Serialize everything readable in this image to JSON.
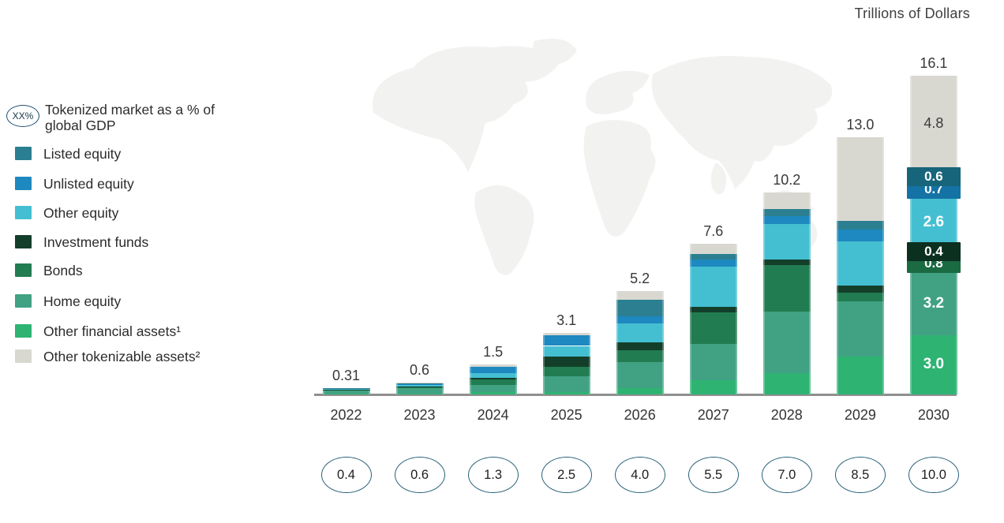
{
  "title": "Trillions of Dollars",
  "legend": {
    "gdp_note": {
      "badge": "XX%",
      "label": "Tokenized market as a % of global GDP"
    },
    "items": [
      {
        "label": "Listed equity",
        "color": "#2b7f90"
      },
      {
        "label": "Unlisted equity",
        "color": "#1e88c0"
      },
      {
        "label": "Other equity",
        "color": "#44bfd2"
      },
      {
        "label": "Investment funds",
        "color": "#133f2a"
      },
      {
        "label": "Bonds",
        "color": "#217c51"
      },
      {
        "label": "Home equity",
        "color": "#41a183"
      },
      {
        "label": "Other financial assets¹",
        "color": "#2eb373"
      },
      {
        "label": "Other tokenizable assets²",
        "color": "#d8d8d1"
      }
    ]
  },
  "chart_data": {
    "type": "bar",
    "stacked": true,
    "unit": "trillions of US dollars",
    "title": "Trillions of Dollars",
    "categories": [
      "2022",
      "2023",
      "2024",
      "2025",
      "2026",
      "2027",
      "2028",
      "2029",
      "2030"
    ],
    "totals": [
      0.31,
      0.6,
      1.5,
      3.1,
      5.2,
      7.6,
      10.2,
      13.0,
      16.1
    ],
    "total_labels": [
      "0.31",
      "0.6",
      "1.5",
      "3.1",
      "5.2",
      "7.6",
      "10.2",
      "13.0",
      "16.1"
    ],
    "gdp_percent_labels": [
      "0.4",
      "0.6",
      "1.3",
      "2.5",
      "4.0",
      "5.5",
      "7.0",
      "8.5",
      "10.0"
    ],
    "gdp_note": "Tokenized market as a % of global GDP",
    "legend_position": "left",
    "grid": false,
    "series_order": "bottom-to-top",
    "series": [
      {
        "key": "other_financial_assets",
        "name": "Other financial assets¹",
        "color": "#2eb373",
        "values": [
          0.03,
          0.05,
          0.12,
          0.1,
          0.33,
          0.73,
          1.07,
          1.9,
          3.0
        ],
        "label_2030": "3.0",
        "label_style": "plain-light"
      },
      {
        "key": "home_equity",
        "name": "Home equity",
        "color": "#41a183",
        "values": [
          0.16,
          0.27,
          0.34,
          0.8,
          1.3,
          1.82,
          3.1,
          2.8,
          3.2
        ],
        "label_2030": "3.2",
        "label_style": "plain-light"
      },
      {
        "key": "bonds",
        "name": "Bonds",
        "color": "#217c51",
        "badge_color": "#1a6a42",
        "values": [
          0.03,
          0.05,
          0.3,
          0.5,
          0.6,
          1.6,
          2.35,
          0.45,
          0.8
        ],
        "label_2030": "0.8",
        "label_style": "badge"
      },
      {
        "key": "investment_funds",
        "name": "Investment funds",
        "color": "#133f2a",
        "badge_color": "#0c3020",
        "values": [
          0.02,
          0.03,
          0.08,
          0.5,
          0.4,
          0.27,
          0.3,
          0.36,
          0.4
        ],
        "label_2030": "0.4",
        "label_style": "badge"
      },
      {
        "key": "other_equity",
        "name": "Other equity",
        "color": "#44bfd2",
        "values": [
          0.04,
          0.08,
          0.24,
          0.55,
          0.95,
          2.03,
          1.8,
          2.2,
          2.6
        ],
        "label_2030": "2.6",
        "label_style": "plain-light"
      },
      {
        "key": "unlisted_equity",
        "name": "Unlisted equity",
        "color": "#1e88c0",
        "badge_color": "#1572a5",
        "values": [
          0.02,
          0.05,
          0.3,
          0.55,
          0.35,
          0.36,
          0.4,
          0.6,
          0.7
        ],
        "label_2030": "0.7",
        "label_style": "badge"
      },
      {
        "key": "listed_equity",
        "name": "Listed equity",
        "color": "#2b7f90",
        "badge_color": "#17657a",
        "values": [
          0.01,
          0.03,
          0.0,
          0.0,
          0.85,
          0.29,
          0.35,
          0.47,
          0.6
        ],
        "label_2030": "0.6",
        "label_style": "badge"
      },
      {
        "key": "other_tokenizable_assets",
        "name": "Other tokenizable assets²",
        "color": "#d8d8d1",
        "values": [
          0.0,
          0.04,
          0.12,
          0.1,
          0.42,
          0.5,
          0.83,
          4.22,
          4.8
        ],
        "label_2030": "4.8",
        "label_style": "plain-dark"
      }
    ]
  }
}
